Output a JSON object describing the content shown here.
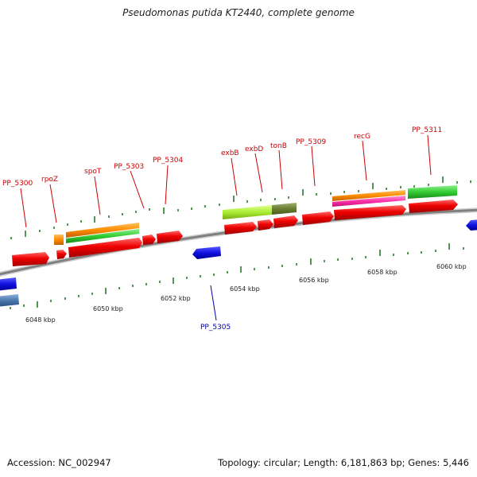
{
  "title": "Pseudomonas putida KT2440, complete genome",
  "footer": {
    "accession": "Accession: NC_002947",
    "topology": "Topology: circular; Length: 6,181,863 bp; Genes: 5,446"
  },
  "colors": {
    "forward_label": "#cc0000",
    "reverse_label": "#0000aa",
    "backbone": "#888888",
    "tick": "#2a7a2a"
  },
  "scale": {
    "labels": [
      {
        "kbp": 6048,
        "text": "6048 kbp"
      },
      {
        "kbp": 6050,
        "text": "6050 kbp"
      },
      {
        "kbp": 6052,
        "text": "6052 kbp"
      },
      {
        "kbp": 6054,
        "text": "6054 kbp"
      },
      {
        "kbp": 6056,
        "text": "6056 kbp"
      },
      {
        "kbp": 6058,
        "text": "6058 kbp"
      },
      {
        "kbp": 6060,
        "text": "6060 kbp"
      }
    ]
  },
  "gene_labels": [
    {
      "name": "PP_5300",
      "strand": "forward"
    },
    {
      "name": "rpoZ",
      "strand": "forward"
    },
    {
      "name": "spoT",
      "strand": "forward"
    },
    {
      "name": "PP_5303",
      "strand": "forward"
    },
    {
      "name": "PP_5304",
      "strand": "forward"
    },
    {
      "name": "exbB",
      "strand": "forward"
    },
    {
      "name": "exbD",
      "strand": "forward"
    },
    {
      "name": "tonB",
      "strand": "forward"
    },
    {
      "name": "PP_5309",
      "strand": "forward"
    },
    {
      "name": "recG",
      "strand": "forward"
    },
    {
      "name": "PP_5311",
      "strand": "forward"
    },
    {
      "name": "PP_5305",
      "strand": "reverse"
    }
  ]
}
